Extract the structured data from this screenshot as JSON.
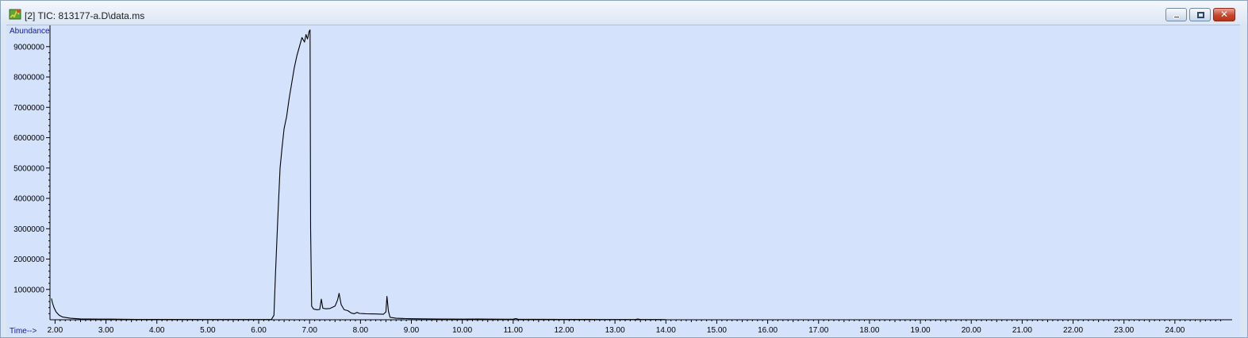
{
  "window": {
    "title": "[2] TIC: 813177-a.D\\data.ms",
    "icon": "chromatogram-app-icon",
    "controls": {
      "minimize": "minimize-icon",
      "maximize": "maximize-icon",
      "close": "close-icon"
    },
    "close_glyph": "✕"
  },
  "chart_data": {
    "type": "line",
    "ylabel": "Abundance",
    "xlabel": "Time-->",
    "xlim": [
      1.9,
      25.0
    ],
    "ylim": [
      0,
      9700000
    ],
    "x_ticks": [
      "2.00",
      "3.00",
      "4.00",
      "5.00",
      "6.00",
      "7.00",
      "8.00",
      "9.00",
      "10.00",
      "11.00",
      "12.00",
      "13.00",
      "14.00",
      "15.00",
      "16.00",
      "17.00",
      "18.00",
      "19.00",
      "20.00",
      "21.00",
      "22.00",
      "23.00",
      "24.00"
    ],
    "y_ticks": [
      "1000000",
      "2000000",
      "3000000",
      "4000000",
      "5000000",
      "6000000",
      "7000000",
      "8000000",
      "9000000"
    ],
    "series": [
      {
        "line_color": "#000000",
        "points": [
          [
            1.93,
            700000
          ],
          [
            1.95,
            550000
          ],
          [
            1.98,
            400000
          ],
          [
            2.02,
            260000
          ],
          [
            2.08,
            150000
          ],
          [
            2.15,
            90000
          ],
          [
            2.3,
            50000
          ],
          [
            2.5,
            30000
          ],
          [
            2.7,
            25000
          ],
          [
            2.9,
            22000
          ],
          [
            3.1,
            20000
          ],
          [
            3.25,
            18000
          ],
          [
            3.4,
            15000
          ],
          [
            3.6,
            12000
          ],
          [
            4.0,
            10000
          ],
          [
            5.0,
            8000
          ],
          [
            6.0,
            8000
          ],
          [
            6.25,
            9000
          ],
          [
            6.3,
            150000
          ],
          [
            6.33,
            1500000
          ],
          [
            6.38,
            3500000
          ],
          [
            6.42,
            5000000
          ],
          [
            6.46,
            5700000
          ],
          [
            6.5,
            6300000
          ],
          [
            6.55,
            6700000
          ],
          [
            6.6,
            7300000
          ],
          [
            6.65,
            7800000
          ],
          [
            6.7,
            8300000
          ],
          [
            6.75,
            8700000
          ],
          [
            6.8,
            9000000
          ],
          [
            6.85,
            9300000
          ],
          [
            6.9,
            9150000
          ],
          [
            6.93,
            9400000
          ],
          [
            6.96,
            9250000
          ],
          [
            6.99,
            9500000
          ],
          [
            7.01,
            9550000
          ],
          [
            7.02,
            3000000
          ],
          [
            7.04,
            450000
          ],
          [
            7.08,
            350000
          ],
          [
            7.15,
            330000
          ],
          [
            7.2,
            340000
          ],
          [
            7.23,
            680000
          ],
          [
            7.26,
            380000
          ],
          [
            7.32,
            360000
          ],
          [
            7.4,
            370000
          ],
          [
            7.5,
            450000
          ],
          [
            7.55,
            650000
          ],
          [
            7.58,
            870000
          ],
          [
            7.62,
            500000
          ],
          [
            7.68,
            330000
          ],
          [
            7.75,
            300000
          ],
          [
            7.82,
            220000
          ],
          [
            7.88,
            200000
          ],
          [
            7.93,
            240000
          ],
          [
            7.98,
            210000
          ],
          [
            8.1,
            200000
          ],
          [
            8.3,
            190000
          ],
          [
            8.45,
            180000
          ],
          [
            8.5,
            260000
          ],
          [
            8.52,
            770000
          ],
          [
            8.55,
            280000
          ],
          [
            8.58,
            80000
          ],
          [
            8.7,
            50000
          ],
          [
            9.0,
            35000
          ],
          [
            9.5,
            25000
          ],
          [
            10.0,
            20000
          ],
          [
            10.3,
            25000
          ],
          [
            10.5,
            20000
          ],
          [
            11.0,
            18000
          ],
          [
            11.05,
            40000
          ],
          [
            11.1,
            18000
          ],
          [
            11.5,
            15000
          ],
          [
            12.0,
            12000
          ],
          [
            12.5,
            10000
          ],
          [
            12.7,
            8000
          ],
          [
            13.0,
            7000
          ],
          [
            13.4,
            9000
          ],
          [
            13.45,
            25000
          ],
          [
            13.5,
            9000
          ],
          [
            13.9,
            8000
          ],
          [
            14.0,
            6000
          ]
        ]
      }
    ],
    "grid": false,
    "legend": "none"
  }
}
